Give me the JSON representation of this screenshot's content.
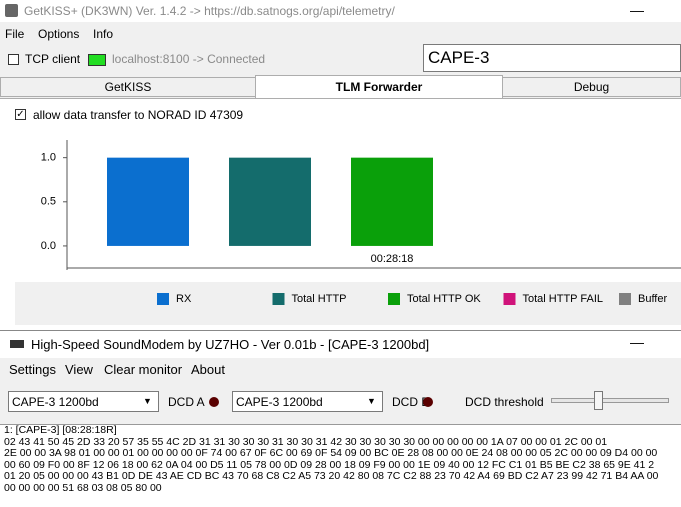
{
  "window1": {
    "title": "GetKISS+ (DK3WN) Ver. 1.4.2 -> https://db.satnogs.org/api/telemetry/",
    "menu": [
      "File",
      "Options",
      "Info"
    ],
    "tcp_client": "TCP client",
    "connection": "localhost:8100 -> Connected",
    "satellite": "CAPE-3",
    "tabs": [
      "GetKISS",
      "TLM Forwarder",
      "Debug"
    ],
    "allow": "allow data transfer to NORAD ID 47309"
  },
  "chart_data": {
    "type": "bar",
    "categories": [
      "00:28:18"
    ],
    "series": [
      {
        "name": "RX",
        "color": "#0b6fcf",
        "values": [
          1.0
        ]
      },
      {
        "name": "Total HTTP",
        "color": "#146c6c",
        "values": [
          1.0
        ]
      },
      {
        "name": "Total HTTP OK",
        "color": "#0aa00a",
        "values": [
          1.0
        ]
      },
      {
        "name": "Total HTTP FAIL",
        "color": "#d0137a",
        "values": [
          0
        ]
      },
      {
        "name": "Buffer",
        "color": "#808080",
        "values": [
          0
        ]
      }
    ],
    "ylim": [
      -0.25,
      1.2
    ],
    "yticks": [
      {
        "value": 0,
        "label": "0.0"
      },
      {
        "value": 0.5,
        "label": "0.5"
      },
      {
        "value": 1,
        "label": "1.0"
      }
    ],
    "legend": "bottom"
  },
  "window2": {
    "title": "High-Speed SoundModem by UZ7HO - Ver 0.01b - [CAPE-3 1200bd]",
    "menu": [
      "Settings",
      "View",
      "Clear monitor",
      "About"
    ],
    "modem_a": "CAPE-3 1200bd",
    "dcd_a": "DCD A",
    "modem_b": "CAPE-3 1200bd",
    "dcd_b": "DCD B",
    "dcd_threshold": "DCD threshold",
    "monitor": [
      "1: [CAPE-3] [08:28:18R]",
      "02 43 41 50 45 2D 33 20 57 35 55 4C 2D 31 31 30 30 30 31 30 30 31 42 30 30 30 30 30 00 00 00 00 00 1A 07 00 00 01 2C 00 01",
      "2E 00 00 3A 98 01 00 00 01 00 00 00 00 0F 74 00 67 0F 6C 00 69 0F 54 09 00 BC 0E 28 08 00 00 0E 24 08 00 00 05 2C 00 00 09 D4 00 00",
      "00 60 09 F0 00 8F 12 06 18 00 62 0A 04 00 D5 11 05 78 00 0D 09 28 00 18 09 F9 00 00 1E 09 40 00 12 FC C1 01 B5 BE C2 38 65 9E 41 2",
      "01 20 05 00 00 00 43 B1 0D DE 43 AE CD BC 43 70 68 C8 C2 A5 73 20 42 80 08 7C C2 88 23 70 42 A4 69 BD C2 A7 23 99 42 71 B4 AA 00",
      "00 00 00 00 51 68 03 08 05 80 00"
    ]
  }
}
